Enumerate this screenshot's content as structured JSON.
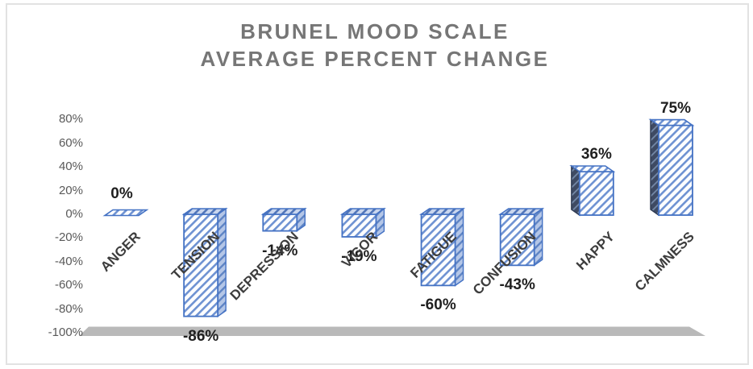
{
  "chart_data": {
    "type": "bar",
    "title_lines": [
      "BRUNEL MOOD SCALE",
      "AVERAGE PERCENT CHANGE"
    ],
    "categories": [
      "ANGER",
      "TENSION",
      "DEPRESSION",
      "VIGOR",
      "FATIGUE",
      "CONFUSION",
      "HAPPY",
      "CALMNESS"
    ],
    "values": [
      0,
      -86,
      -14,
      -19,
      -60,
      -43,
      36,
      75
    ],
    "value_labels": [
      "0%",
      "-86%",
      "-14%",
      "-19%",
      "-60%",
      "-43%",
      "36%",
      "75%"
    ],
    "y_ticks": [
      {
        "value": 80,
        "label": "80%"
      },
      {
        "value": 60,
        "label": "60%"
      },
      {
        "value": 40,
        "label": "40%"
      },
      {
        "value": 20,
        "label": "20%"
      },
      {
        "value": 0,
        "label": "0%"
      },
      {
        "value": -20,
        "label": "-20%"
      },
      {
        "value": -40,
        "label": "-40%"
      },
      {
        "value": -60,
        "label": "-60%"
      },
      {
        "value": -80,
        "label": "-80%"
      },
      {
        "value": -100,
        "label": "-100%"
      }
    ],
    "ylim": [
      -100,
      80
    ],
    "ytick_step": 20,
    "xlabel": "",
    "ylabel": "",
    "grid": "off",
    "legend": "none",
    "bar_style": "3d-box-diagonal-hatch",
    "colors": {
      "bar_outline": "#4472C4",
      "hatch_bg": "#FDFEFF",
      "hatch_line": "#6E92D2",
      "side_face_bg": "#B4C6E7",
      "side_face_line": "#5E84C4",
      "top_face_bg": "#C9D6EE",
      "top_face_line": "#4F74B8",
      "dark_face_bg": "#3E4A63",
      "dark_face_line": "#7489A8",
      "dark_face_stroke": "#2E3A52",
      "floor": "#B9B9B9",
      "title_text": "#767676",
      "axis_text": "#595959",
      "category_text": "#3D3D3D",
      "value_text": "#1F1F1F",
      "frame_border": "#E2E2E2"
    }
  }
}
